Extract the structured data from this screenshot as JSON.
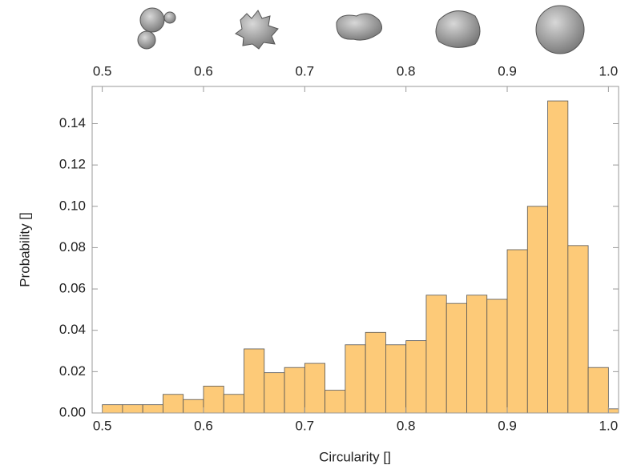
{
  "chart_data": {
    "type": "histogram",
    "xlabel": "Circularity []",
    "ylabel": "Probability []",
    "bins": [
      0.5,
      0.52,
      0.54,
      0.56,
      0.58,
      0.6,
      0.62,
      0.64,
      0.66,
      0.68,
      0.7,
      0.72,
      0.74,
      0.76,
      0.78,
      0.8,
      0.82,
      0.84,
      0.86,
      0.88,
      0.9,
      0.92,
      0.94,
      0.96,
      0.98,
      1.0,
      1.02
    ],
    "values": [
      0.004,
      0.004,
      0.004,
      0.009,
      0.0065,
      0.013,
      0.009,
      0.031,
      0.0195,
      0.022,
      0.024,
      0.011,
      0.033,
      0.039,
      0.033,
      0.035,
      0.057,
      0.053,
      0.057,
      0.055,
      0.079,
      0.1,
      0.151,
      0.081,
      0.022,
      0.002
    ],
    "color": "#fdca78",
    "xlim": [
      0.49,
      1.01
    ],
    "ylim": [
      0,
      0.158
    ],
    "xticks": [
      0.5,
      0.6,
      0.7,
      0.8,
      0.9,
      {
        "value": 1.0,
        "label": "1.0"
      }
    ],
    "yticks": [
      {
        "value": 0,
        "label": "0.00"
      },
      {
        "value": 0.02,
        "label": "0.02"
      },
      {
        "value": 0.04,
        "label": "0.04"
      },
      {
        "value": 0.06,
        "label": "0.06"
      },
      {
        "value": 0.08,
        "label": "0.08"
      },
      {
        "value": 0.1,
        "label": "0.10"
      },
      {
        "value": 0.12,
        "label": "0.12"
      },
      {
        "value": 0.14,
        "label": "0.14"
      }
    ]
  }
}
